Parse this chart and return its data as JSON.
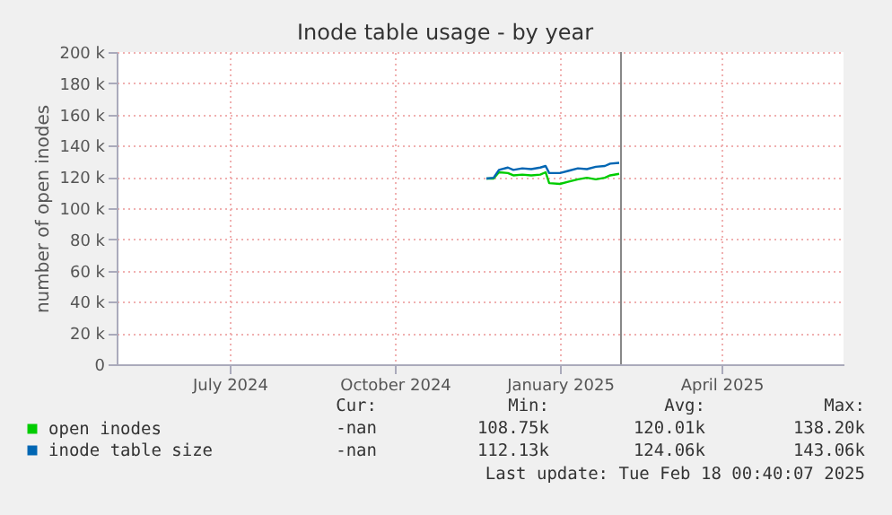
{
  "chart_data": {
    "type": "line",
    "title": "Inode table usage - by year",
    "ylabel": "number of open inodes",
    "x": [
      "2024-12-05",
      "2024-12-09",
      "2024-12-12",
      "2024-12-17",
      "2024-12-20",
      "2024-12-25",
      "2024-12-30",
      "2025-01-04",
      "2025-01-07",
      "2025-01-09",
      "2025-01-15",
      "2025-01-20",
      "2025-01-25",
      "2025-01-30",
      "2025-02-04",
      "2025-02-09",
      "2025-02-12",
      "2025-02-17"
    ],
    "series": [
      {
        "name": "open inodes",
        "color": "#00cc00",
        "values": [
          119000,
          119000,
          123000,
          122500,
          121000,
          121500,
          121000,
          121500,
          123000,
          116000,
          115500,
          117000,
          118500,
          119500,
          118500,
          119500,
          121000,
          122000
        ]
      },
      {
        "name": "inode table size",
        "color": "#0066b3",
        "values": [
          119000,
          119500,
          124500,
          126000,
          124500,
          125500,
          125000,
          126000,
          127000,
          122500,
          122500,
          124000,
          125500,
          125000,
          126500,
          127000,
          128500,
          129000
        ]
      }
    ],
    "xlim": [
      "2024-05-13",
      "2025-06-22"
    ],
    "xticks": [
      {
        "value": "2024-07-15",
        "label": "July 2024"
      },
      {
        "value": "2024-10-15",
        "label": "October 2024"
      },
      {
        "value": "2025-01-15",
        "label": "January 2025"
      },
      {
        "value": "2025-04-15",
        "label": "April 2025"
      }
    ],
    "ylim": [
      0,
      200000
    ],
    "yticks": [
      {
        "value": 0,
        "label": "0"
      },
      {
        "value": 20000,
        "label": "20 k"
      },
      {
        "value": 40000,
        "label": "40 k"
      },
      {
        "value": 60000,
        "label": "60 k"
      },
      {
        "value": 80000,
        "label": "80 k"
      },
      {
        "value": 100000,
        "label": "100 k"
      },
      {
        "value": 120000,
        "label": "120 k"
      },
      {
        "value": 140000,
        "label": "140 k"
      },
      {
        "value": 160000,
        "label": "160 k"
      },
      {
        "value": 180000,
        "label": "180 k"
      },
      {
        "value": 200000,
        "label": "200 k"
      }
    ],
    "ref_lines": [
      {
        "axis": "x",
        "value": "2025-02-18",
        "color": "#888888"
      }
    ],
    "grid": true,
    "legend": "bottom",
    "marker": "none",
    "line_style": "solid",
    "annotations": [
      "Cur:",
      "Min:",
      "Avg:",
      "Max:",
      "-nan",
      "108.75k",
      "120.01k",
      "138.20k",
      "-nan",
      "112.13k",
      "124.06k",
      "143.06k",
      "Last update: Tue Feb 18 00:40:07 2025"
    ]
  }
}
